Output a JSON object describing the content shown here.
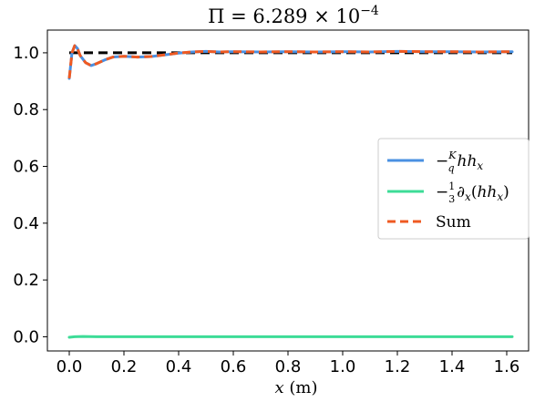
{
  "chart_data": {
    "type": "line",
    "title_prefix": "Π = 6.289 × 10",
    "title_exponent": "−4",
    "xlabel_var": "x",
    "xlabel_unit": " (m)",
    "xlim": [
      -0.08,
      1.68
    ],
    "ylim": [
      -0.05,
      1.08
    ],
    "xticks": [
      0.0,
      0.2,
      0.4,
      0.6,
      0.8,
      1.0,
      1.2,
      1.4,
      1.6
    ],
    "xtick_labels": [
      "0.0",
      "0.2",
      "0.4",
      "0.6",
      "0.8",
      "1.0",
      "1.2",
      "1.4",
      "1.6"
    ],
    "yticks": [
      0.0,
      0.2,
      0.4,
      0.6,
      0.8,
      1.0
    ],
    "ytick_labels": [
      "0.0",
      "0.2",
      "0.4",
      "0.6",
      "0.8",
      "1.0"
    ],
    "grid": false,
    "legend_position": "center-right",
    "reference_line": {
      "x": [
        0.0,
        1.62
      ],
      "y": [
        1.0,
        1.0
      ],
      "color": "#000000",
      "style": "dashed"
    },
    "series": [
      {
        "legend_text": "−(K/q) h hₓ",
        "color": "#4a90e2",
        "style": "solid",
        "x": [
          0.0,
          0.01,
          0.02,
          0.03,
          0.04,
          0.06,
          0.08,
          0.1,
          0.13,
          0.16,
          0.2,
          0.25,
          0.3,
          0.35,
          0.4,
          0.45,
          0.5,
          0.55,
          0.6,
          0.7,
          0.8,
          0.9,
          1.0,
          1.1,
          1.2,
          1.3,
          1.4,
          1.5,
          1.62
        ],
        "y": [
          0.91,
          1.0,
          1.025,
          1.015,
          0.99,
          0.965,
          0.955,
          0.962,
          0.975,
          0.985,
          0.988,
          0.985,
          0.987,
          0.993,
          0.999,
          1.003,
          1.005,
          1.003,
          1.004,
          1.003,
          1.004,
          1.003,
          1.004,
          1.003,
          1.005,
          1.004,
          1.004,
          1.003,
          1.004
        ]
      },
      {
        "legend_text": "−(1/3) ∂ₓ(h hₓ)",
        "color": "#3ddc97",
        "style": "solid",
        "x": [
          0.0,
          0.02,
          0.05,
          0.1,
          0.2,
          0.4,
          0.6,
          0.8,
          1.0,
          1.2,
          1.4,
          1.62
        ],
        "y": [
          -0.002,
          0.0,
          0.001,
          0.0,
          0.0,
          0.0,
          0.0,
          0.0,
          0.0,
          0.0,
          0.0,
          0.0
        ]
      },
      {
        "legend_text": "Sum",
        "color": "#ef5a22",
        "style": "dashed",
        "x": [
          0.0,
          0.01,
          0.02,
          0.03,
          0.04,
          0.06,
          0.08,
          0.1,
          0.13,
          0.16,
          0.2,
          0.25,
          0.3,
          0.35,
          0.4,
          0.45,
          0.5,
          0.55,
          0.6,
          0.7,
          0.8,
          0.9,
          1.0,
          1.1,
          1.2,
          1.3,
          1.4,
          1.5,
          1.62
        ],
        "y": [
          0.91,
          1.0,
          1.025,
          1.015,
          0.99,
          0.965,
          0.955,
          0.962,
          0.975,
          0.985,
          0.988,
          0.985,
          0.987,
          0.993,
          0.999,
          1.003,
          1.005,
          1.003,
          1.004,
          1.003,
          1.004,
          1.003,
          1.004,
          1.003,
          1.005,
          1.004,
          1.004,
          1.003,
          1.004
        ]
      }
    ]
  }
}
